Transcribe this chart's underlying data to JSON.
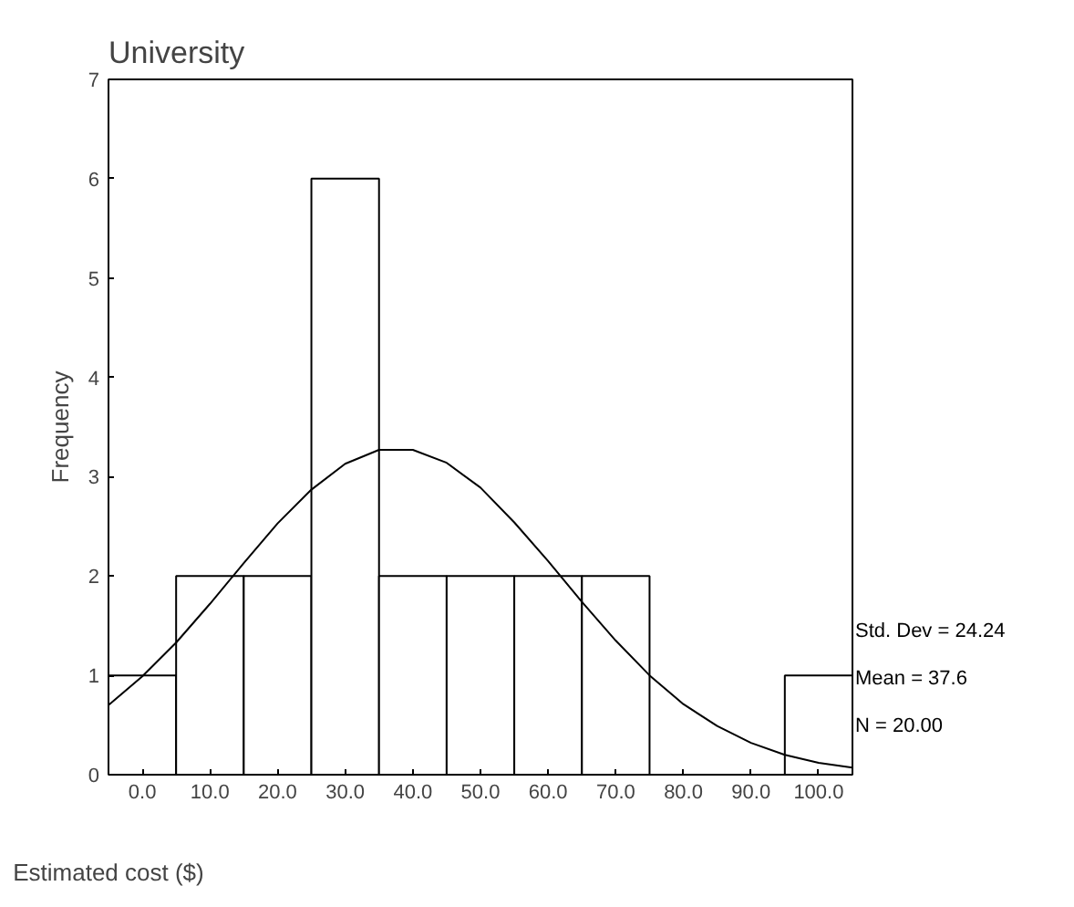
{
  "chart_data": {
    "type": "histogram",
    "title": "University",
    "xlabel": "Estimated cost ($)",
    "ylabel": "Frequency",
    "bins": [
      -5,
      5,
      15,
      25,
      35,
      45,
      55,
      65,
      75,
      85,
      95,
      105
    ],
    "values": [
      1,
      2,
      2,
      6,
      2,
      2,
      2,
      2,
      0,
      0,
      1
    ],
    "color": "#ffffff",
    "series": [
      {
        "type": "line",
        "color": "#000000",
        "x": [
          -5,
          0,
          5,
          10,
          15,
          20,
          25,
          30,
          35,
          40,
          45,
          50,
          55,
          60,
          65,
          70,
          75,
          80,
          85,
          90,
          95,
          100,
          105
        ],
        "values": [
          0.7,
          0.99,
          1.33,
          1.72,
          2.13,
          2.53,
          2.87,
          3.13,
          3.27,
          3.27,
          3.14,
          2.89,
          2.54,
          2.15,
          1.74,
          1.35,
          1.0,
          0.71,
          0.49,
          0.32,
          0.2,
          0.12,
          0.07
        ]
      }
    ],
    "xlim": [
      -5,
      105
    ],
    "ylim": [
      0,
      7
    ],
    "xticks": [
      {
        "value": 0,
        "label": "0.0"
      },
      {
        "value": 10,
        "label": "10.0"
      },
      {
        "value": 20,
        "label": "20.0"
      },
      {
        "value": 30,
        "label": "30.0"
      },
      {
        "value": 40,
        "label": "40.0"
      },
      {
        "value": 50,
        "label": "50.0"
      },
      {
        "value": 60,
        "label": "60.0"
      },
      {
        "value": 70,
        "label": "70.0"
      },
      {
        "value": 80,
        "label": "80.0"
      },
      {
        "value": 90,
        "label": "90.0"
      },
      {
        "value": 100,
        "label": "100.0"
      }
    ],
    "yticks": [
      0,
      1,
      2,
      3,
      4,
      5,
      6,
      7
    ],
    "annotations": [
      "Std. Dev = 24.24",
      "Mean = 37.6",
      "N = 20.00"
    ],
    "grid": false
  }
}
